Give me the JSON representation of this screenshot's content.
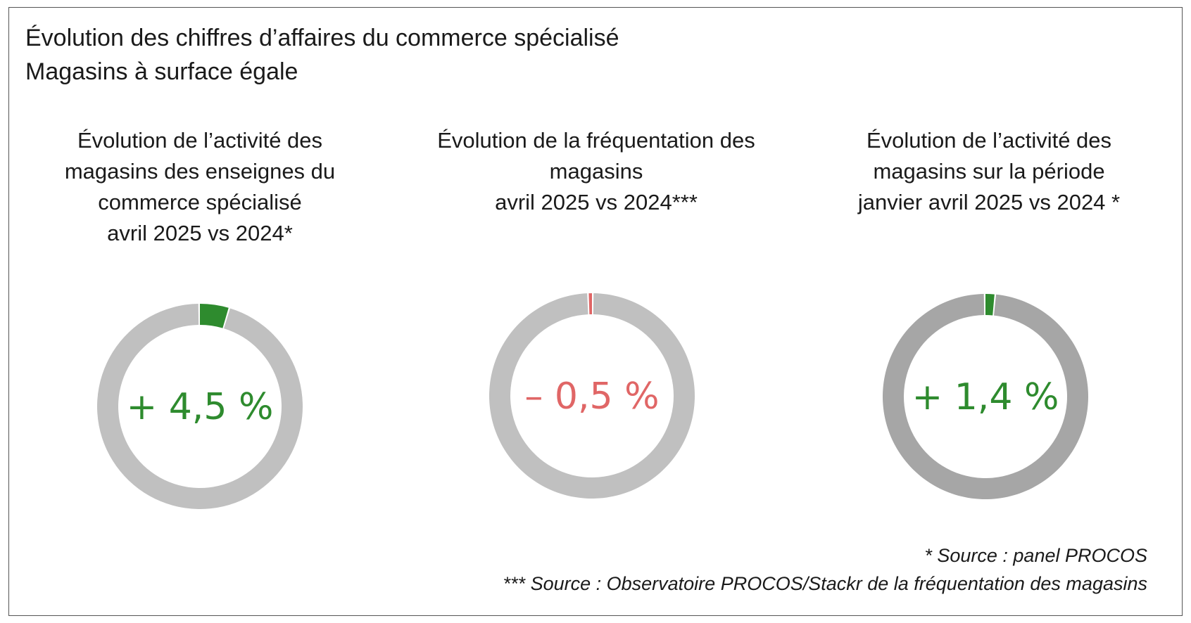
{
  "title_lines": [
    "Évolution des chiffres d’affaires du commerce spécialisé",
    "Magasins à surface égale"
  ],
  "colors": {
    "track": "#c0c0c0",
    "track_dark": "#a6a6a6",
    "positive": "#2e8b2e",
    "negative": "#e06666"
  },
  "chart_data": [
    {
      "type": "pie",
      "title_lines": [
        "Évolution de l’activité des",
        "magasins des enseignes du",
        "commerce spécialisé",
        "avril 2025 vs 2024*"
      ],
      "value": 4.5,
      "label": "+ 4,5 %"
    },
    {
      "type": "pie",
      "title_lines": [
        "Évolution de la fréquentation des",
        "magasins",
        "avril 2025 vs 2024***"
      ],
      "value": -0.5,
      "label": "– 0,5 %"
    },
    {
      "type": "pie",
      "title_lines": [
        "Évolution de l’activité des",
        "magasins sur la période",
        "janvier avril 2025 vs 2024 *"
      ],
      "value": 1.4,
      "label": "+ 1,4 %"
    }
  ],
  "sources": [
    "* Source : panel PROCOS",
    "*** Source : Observatoire PROCOS/Stackr de la fréquentation des magasins"
  ]
}
